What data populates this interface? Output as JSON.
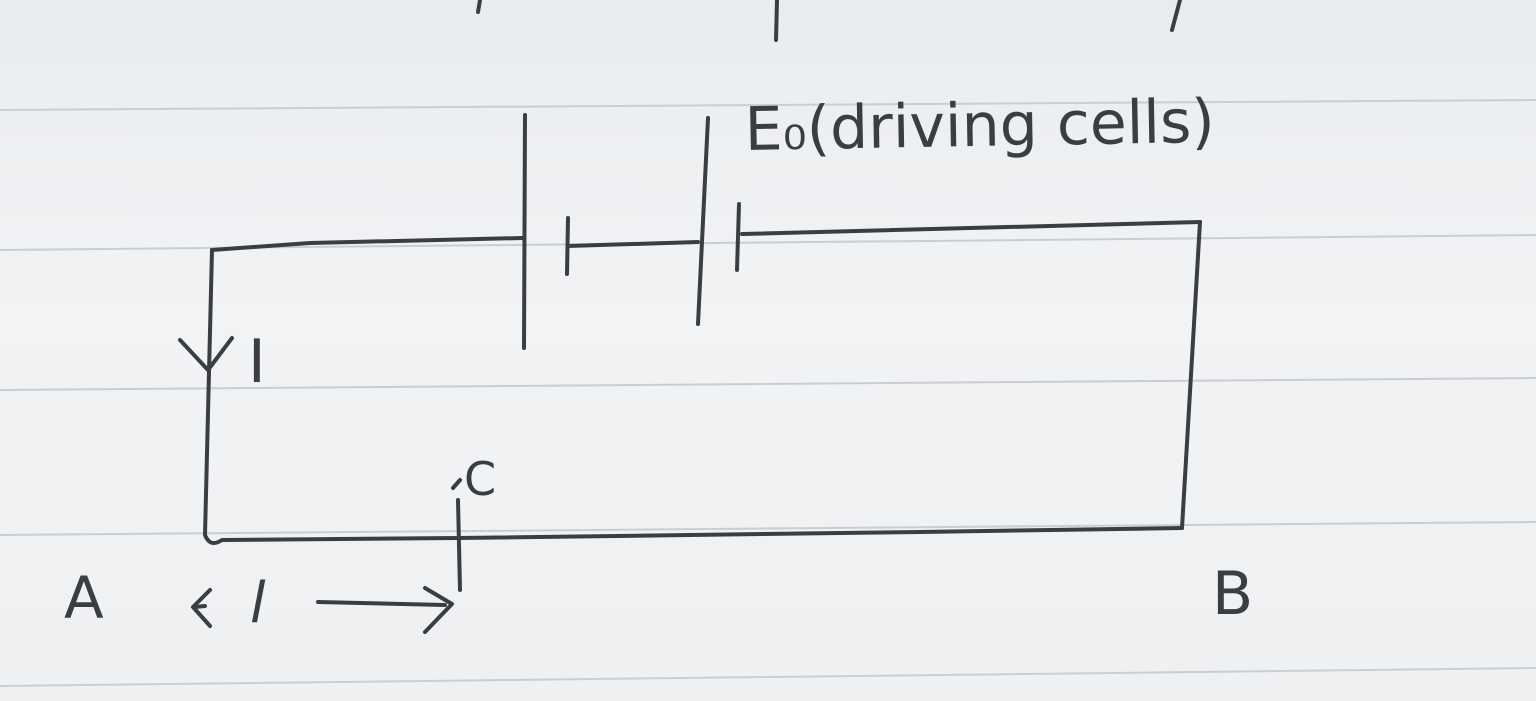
{
  "paper": {
    "background": "#eef0f2",
    "rule_color": "#c9ced6",
    "ink_color": "#3b3d44"
  },
  "labels": {
    "source": "E₀(driving cells)",
    "current": "I",
    "point_a": "A",
    "point_b": "B",
    "point_c": "C",
    "length": "← l →"
  }
}
